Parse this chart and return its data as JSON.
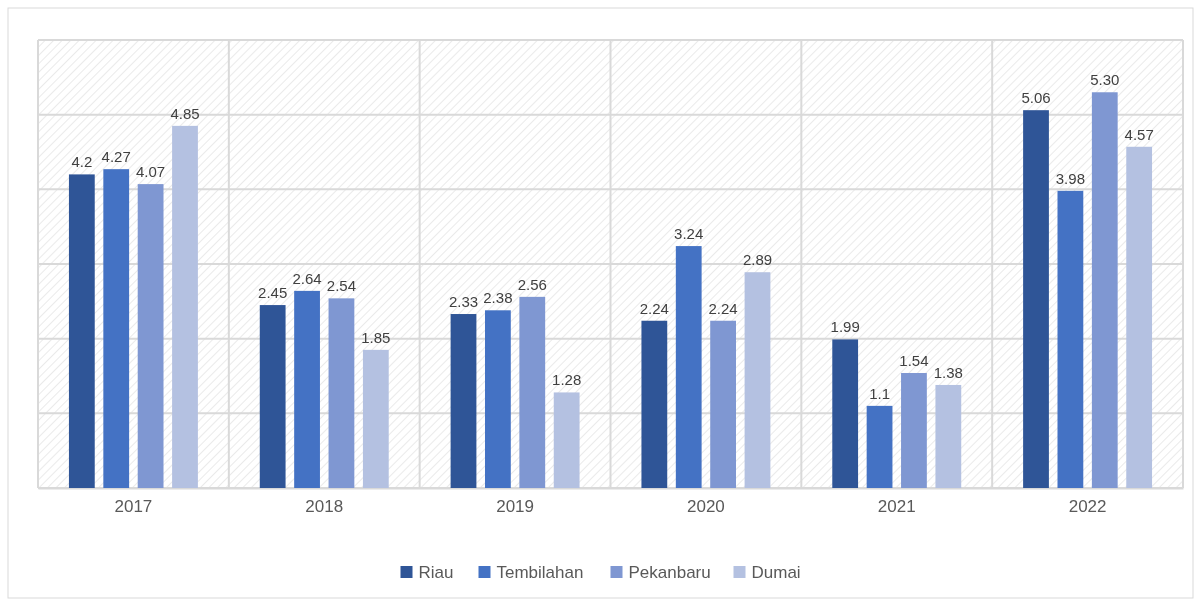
{
  "chart_data": {
    "type": "bar",
    "categories": [
      "2017",
      "2018",
      "2019",
      "2020",
      "2021",
      "2022"
    ],
    "series": [
      {
        "name": "Riau",
        "color": "#2f5597",
        "values": [
          4.2,
          2.45,
          2.33,
          2.24,
          1.99,
          5.06
        ],
        "value_labels": [
          "4.2",
          "2.45",
          "2.33",
          "2.24",
          "1.99",
          "5.06"
        ]
      },
      {
        "name": "Tembilahan",
        "color": "#4472c4",
        "values": [
          4.27,
          2.64,
          2.38,
          3.24,
          1.1,
          3.98
        ],
        "value_labels": [
          "4.27",
          "2.64",
          "2.38",
          "3.24",
          "1.1",
          "3.98"
        ]
      },
      {
        "name": "Pekanbaru",
        "color": "#7f97d2",
        "values": [
          4.07,
          2.54,
          2.56,
          2.24,
          1.54,
          5.3
        ],
        "value_labels": [
          "4.07",
          "2.54",
          "2.56",
          "2.24",
          "1.54",
          "5.30"
        ]
      },
      {
        "name": "Dumai",
        "color": "#b4c1e1",
        "values": [
          4.85,
          1.85,
          1.28,
          2.89,
          1.38,
          4.57
        ],
        "value_labels": [
          "4.85",
          "1.85",
          "1.28",
          "2.89",
          "1.38",
          "4.57"
        ]
      }
    ],
    "ylim": [
      0,
      6
    ],
    "yticks": [
      {
        "value": 0,
        "label": null
      },
      {
        "value": 1,
        "label": null
      },
      {
        "value": 2,
        "label": null
      },
      {
        "value": 3,
        "label": null
      },
      {
        "value": 4,
        "label": null
      },
      {
        "value": 5,
        "label": null
      },
      {
        "value": 6,
        "label": null
      }
    ],
    "tick_labels": "x",
    "grid": true,
    "legend": "bottom"
  }
}
